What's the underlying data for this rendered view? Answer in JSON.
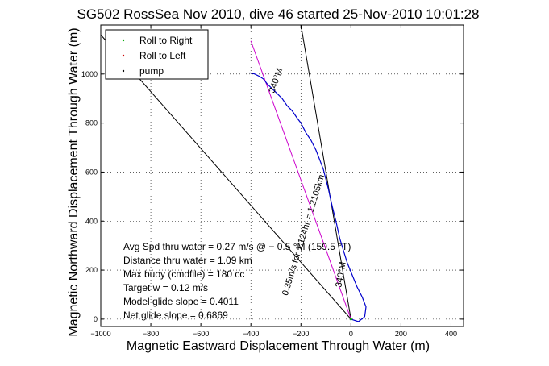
{
  "chart_data": {
    "type": "line",
    "title": "SG502 RossSea Nov 2010, dive 46 started 25-Nov-2010 10:01:28",
    "xlabel": "Magnetic Eastward Displacement Through Water (m)",
    "ylabel": "Magnetic Northward Displacement Through Water (m)",
    "xlim": [
      -1000,
      450
    ],
    "ylim": [
      -30,
      1200
    ],
    "xticks": [
      -1000,
      -800,
      -600,
      -400,
      -200,
      0,
      200,
      400
    ],
    "xtick_labels": [
      "−1000",
      "−800",
      "−600",
      "−400",
      "−200",
      "0",
      "200",
      "400"
    ],
    "yticks": [
      0,
      200,
      400,
      600,
      800,
      1000
    ],
    "ytick_labels": [
      "0",
      "200",
      "400",
      "600",
      "800",
      "1000"
    ],
    "grid": true,
    "legend_position": "top-left",
    "series": [
      {
        "name": "Roll to Right",
        "color": "#00aa00",
        "style": "dots"
      },
      {
        "name": "Roll to Left",
        "color": "#cc0000",
        "style": "dots"
      },
      {
        "name": "pump",
        "color": "#000000",
        "style": "dots"
      }
    ],
    "track": {
      "color": "#0000cc",
      "x": [
        0,
        30,
        55,
        60,
        45,
        25,
        5,
        -15,
        -30,
        -45,
        -60,
        -75,
        -90,
        -100,
        -110,
        -125,
        -140,
        -160,
        -180,
        -200,
        -215,
        -235,
        -255,
        -275,
        -295,
        -315,
        -335,
        -350,
        -365,
        -385,
        -395,
        -405
      ],
      "y": [
        0,
        -10,
        10,
        50,
        90,
        130,
        180,
        230,
        280,
        330,
        400,
        460,
        530,
        570,
        610,
        650,
        690,
        730,
        760,
        800,
        820,
        850,
        870,
        900,
        920,
        940,
        960,
        980,
        990,
        1000,
        1003,
        1005
      ]
    },
    "model_line": {
      "color": "#cc00cc",
      "x": [
        0,
        -400
      ],
      "y": [
        0,
        1135
      ]
    },
    "reference_lines": [
      {
        "color": "#000000",
        "x": [
          0,
          -1000
        ],
        "y": [
          0,
          1160
        ]
      },
      {
        "color": "#000000",
        "x": [
          0,
          -200
        ],
        "y": [
          0,
          1200
        ]
      }
    ],
    "annotations": [
      {
        "text": "340°M",
        "x": -290,
        "y": 970,
        "rotation": -71
      },
      {
        "text": "0.35m/s for 1.124hr = 1.2105km",
        "x": -180,
        "y": 340,
        "rotation": -73
      },
      {
        "text": "340°M",
        "x": -30,
        "y": 180,
        "rotation": -80
      }
    ],
    "summary_lines": [
      "Avg Spd thru water =  0.27 m/s @ − 0.5  °M (159.5 °T)",
      "Distance thru water =  1.09 km",
      "Max buoy (cmdfile) = 180 cc",
      "Target w = 0.12 m/s",
      "Model glide slope = 0.4011",
      "Net glide slope = 0.6869"
    ]
  }
}
